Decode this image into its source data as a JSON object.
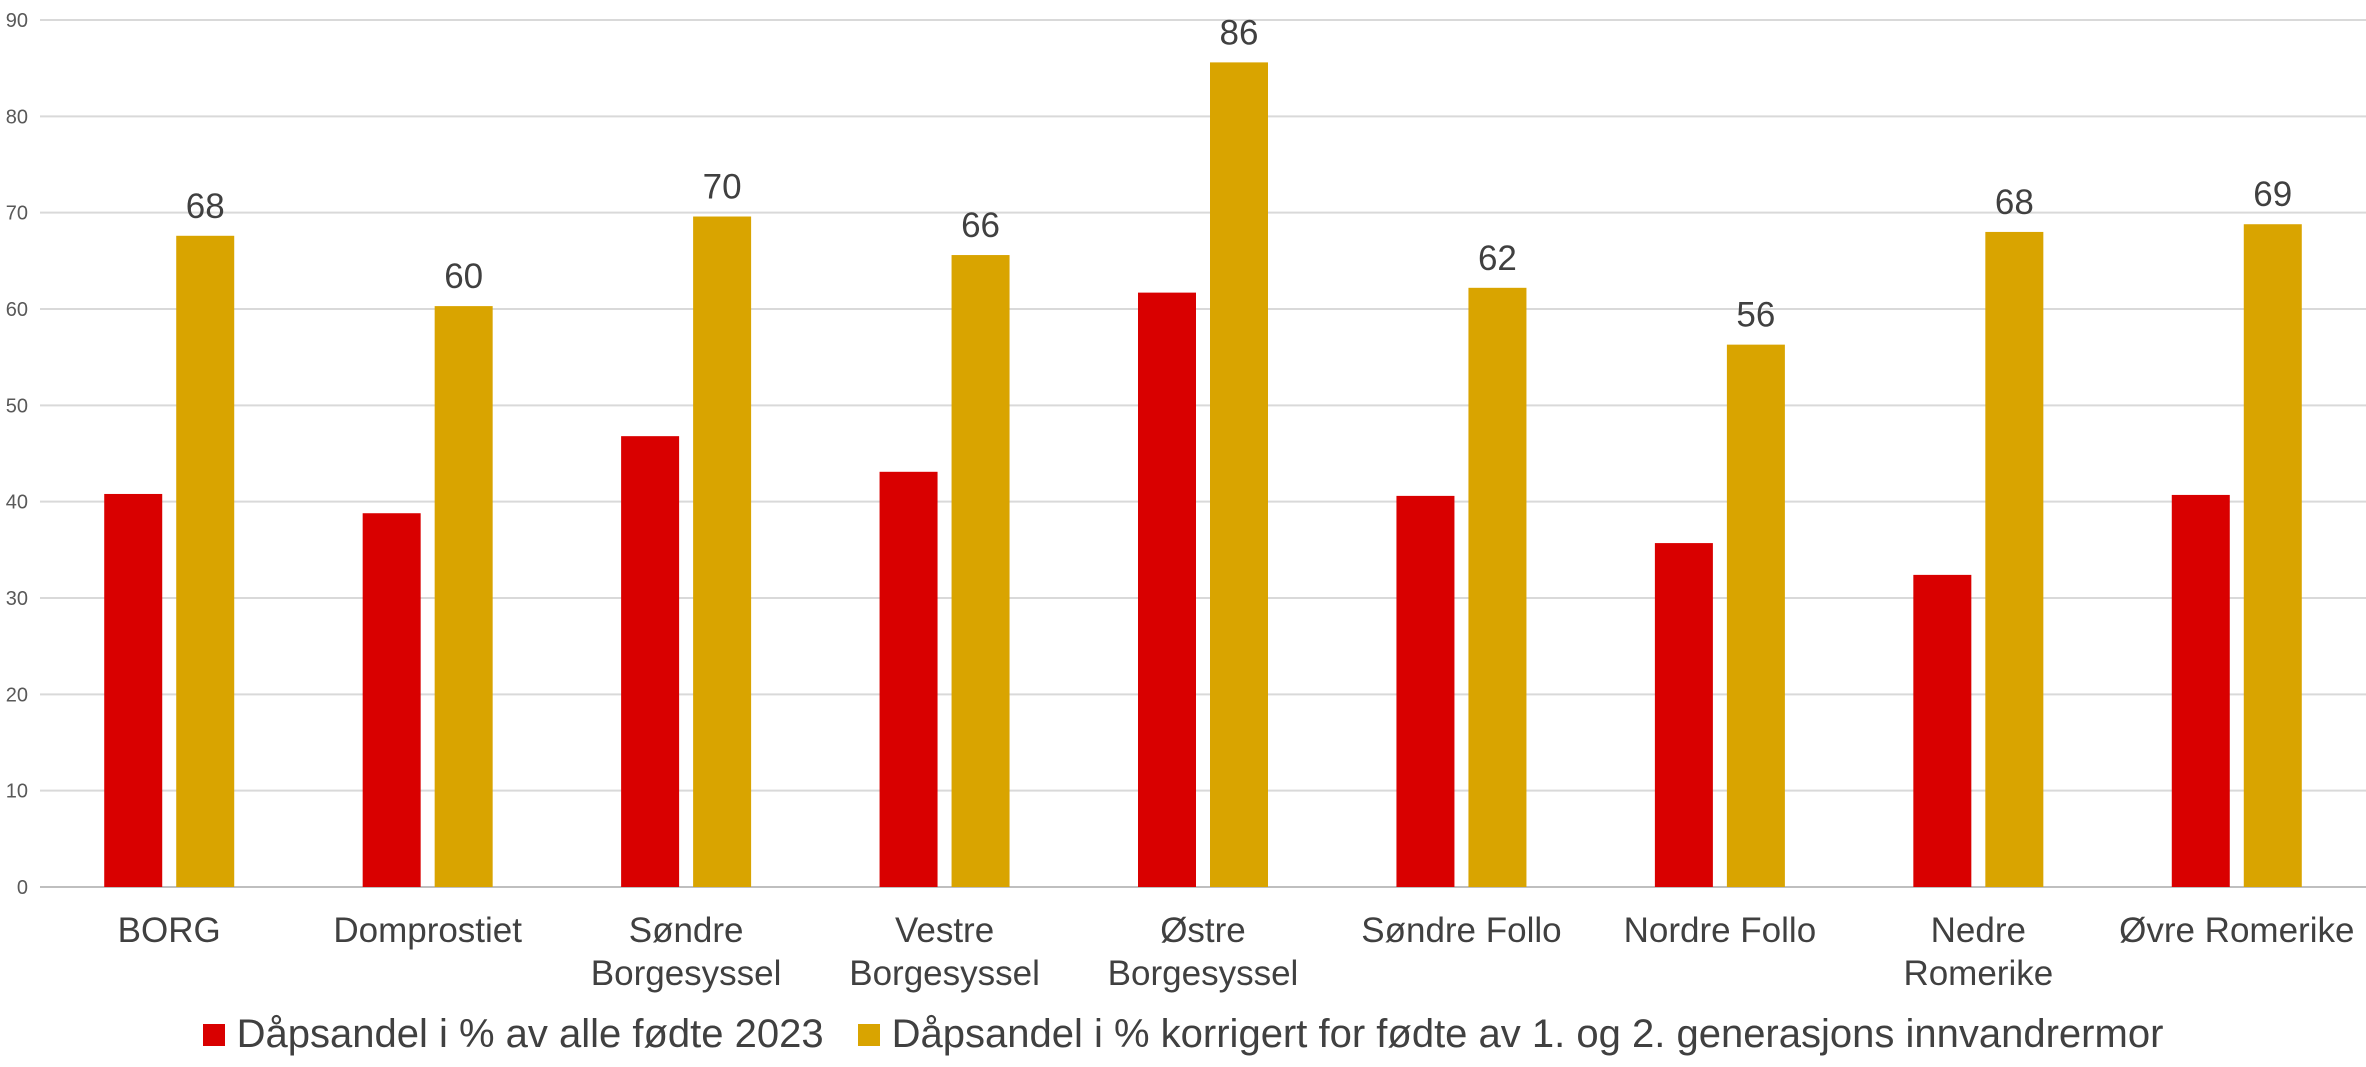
{
  "chart_data": {
    "type": "bar",
    "categories": [
      [
        "BORG"
      ],
      [
        "Domprostiet"
      ],
      [
        "Søndre",
        "Borgesyssel"
      ],
      [
        "Vestre",
        "Borgesyssel"
      ],
      [
        "Østre",
        "Borgesyssel"
      ],
      [
        "Søndre Follo"
      ],
      [
        "Nordre Follo"
      ],
      [
        "Nedre",
        "Romerike"
      ],
      [
        "Øvre Romerike"
      ]
    ],
    "series": [
      {
        "name": "Dåpsandel i % av alle fødte 2023",
        "color": "#D90000",
        "values": [
          40.8,
          38.8,
          46.8,
          43.1,
          61.7,
          40.6,
          35.7,
          32.4,
          40.7
        ],
        "show_labels": false
      },
      {
        "name": "Dåpsandel i % korrigert for fødte av 1. og 2. generasjons innvandrermor",
        "color": "#D9A400",
        "values": [
          67.6,
          60.3,
          69.6,
          65.6,
          85.6,
          62.2,
          56.3,
          68.0,
          68.8
        ],
        "data_labels": [
          "68",
          "60",
          "70",
          "66",
          "86",
          "62",
          "56",
          "68",
          "69"
        ],
        "show_labels": true
      }
    ],
    "ylim": [
      0,
      90
    ],
    "yticks": [
      0,
      10,
      20,
      30,
      40,
      50,
      60,
      70,
      80,
      90
    ],
    "grid": true,
    "legend": "bottom",
    "title": "",
    "xlabel": "",
    "ylabel": ""
  }
}
